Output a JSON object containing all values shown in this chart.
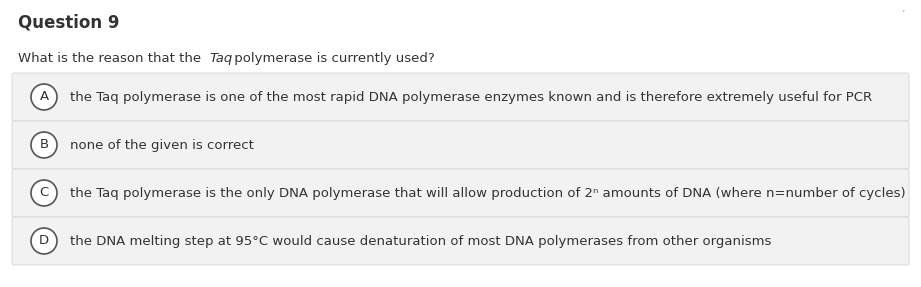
{
  "title": "Question 9",
  "question_parts": [
    {
      "text": "What is the reason that the ",
      "italic": false
    },
    {
      "text": "Taq",
      "italic": true
    },
    {
      "text": " polymerase is currently used?",
      "italic": false
    }
  ],
  "options": [
    {
      "label": "A",
      "text": "the Taq polymerase is one of the most rapid DNA polymerase enzymes known and is therefore extremely useful for PCR"
    },
    {
      "label": "B",
      "text": "none of the given is correct"
    },
    {
      "label": "C",
      "text": "the Taq polymerase is the only DNA polymerase that will allow production of 2ⁿ amounts of DNA (where n=number of cycles)"
    },
    {
      "label": "D",
      "text": "the DNA melting step at 95°C would cause denaturation of most DNA polymerases from other organisms"
    }
  ],
  "bg_color": "#ffffff",
  "option_bg_color": "#f2f2f2",
  "title_fontsize": 12,
  "question_fontsize": 9.5,
  "option_fontsize": 9.5,
  "text_color": "#333333",
  "circle_edge_color": "#555555",
  "border_color": "#d8d8d8",
  "apostrophe_color": "#aaaaaa"
}
